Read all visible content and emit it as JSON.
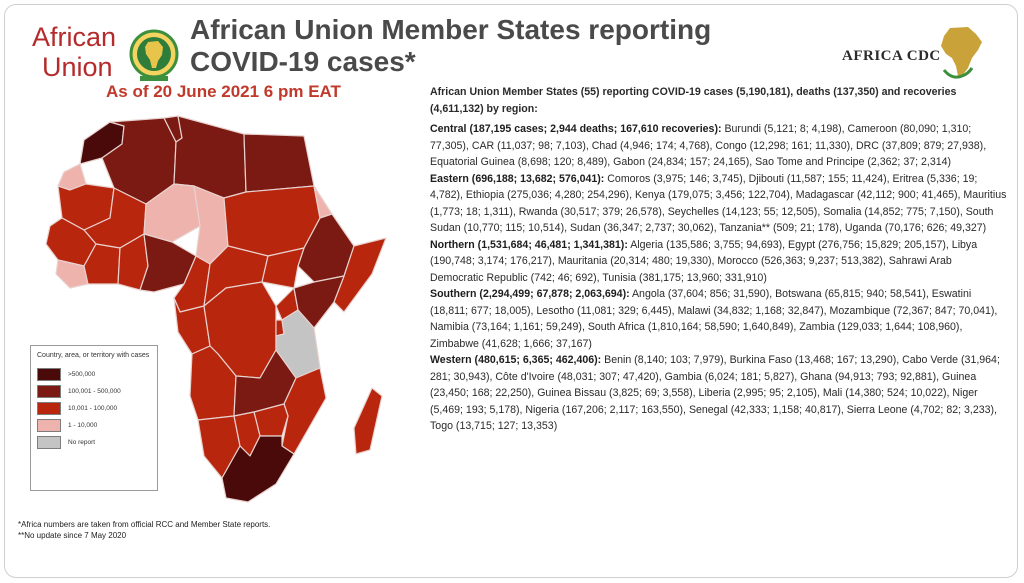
{
  "header": {
    "title_line1": "African Union Member States reporting",
    "title_line2": "COVID-19 cases*",
    "date_line": "As of 20 June 2021 6 pm EAT"
  },
  "logos": {
    "au_word1": "African",
    "au_word2": "Union",
    "cdc_text": "AFRICA CDC"
  },
  "summary": {
    "intro": "African Union Member States (55) reporting COVID-19 cases (5,190,181), deaths (137,350) and recoveries (4,611,132) by region:",
    "regions": [
      {
        "heading": "Central (187,195 cases; 2,944 deaths; 167,610 recoveries):",
        "details": "Burundi (5,121; 8; 4,198), Cameroon (80,090; 1,310; 77,305), CAR (11,037; 98; 7,103), Chad (4,946; 174; 4,768), Congo (12,298; 161; 11,330), DRC (37,809; 879; 27,938), Equatorial Guinea (8,698; 120; 8,489), Gabon (24,834; 157; 24,165), Sao Tome and Principe (2,362; 37; 2,314)"
      },
      {
        "heading": "Eastern (696,188; 13,682; 576,041):",
        "details": "Comoros (3,975; 146; 3,745), Djibouti (11,587; 155; 11,424), Eritrea (5,336; 19; 4,782), Ethiopia (275,036; 4,280; 254,296), Kenya (179,075; 3,456; 122,704), Madagascar (42,112; 900; 41,465), Mauritius (1,773; 18; 1,311), Rwanda (30,517; 379; 26,578), Seychelles (14,123; 55; 12,505), Somalia (14,852; 775; 7,150), South Sudan (10,770; 115; 10,514), Sudan (36,347; 2,737; 30,062), Tanzania** (509; 21; 178), Uganda (70,176; 626; 49,327)"
      },
      {
        "heading": "Northern (1,531,684; 46,481; 1,341,381):",
        "details": "Algeria (135,586; 3,755; 94,693), Egypt (276,756; 15,829; 205,157), Libya (190,748; 3,174; 176,217), Mauritania (20,314; 480; 19,330), Morocco (526,363; 9,237; 513,382), Sahrawi Arab Democratic Republic (742; 46; 692), Tunisia (381,175; 13,960; 331,910)"
      },
      {
        "heading": "Southern (2,294,499; 67,878; 2,063,694):",
        "details": "Angola (37,604; 856; 31,590), Botswana (65,815; 940; 58,541), Eswatini (18,811; 677; 18,005), Lesotho (11,081; 329; 6,445), Malawi (34,832; 1,168; 32,847), Mozambique (72,367; 847; 70,041), Namibia (73,164; 1,161; 59,249), South Africa (1,810,164; 58,590; 1,640,849), Zambia (129,033; 1,644; 108,960), Zimbabwe (41,628; 1,666; 37,167)"
      },
      {
        "heading": "Western (480,615; 6,365; 462,406):",
        "details": "Benin (8,140; 103; 7,979), Burkina Faso (13,468; 167; 13,290), Cabo Verde (31,964; 281; 30,943), Côte d'Ivoire (48,031; 307; 47,420), Gambia (6,024; 181; 5,827), Ghana (94,913; 793; 92,881), Guinea (23,450; 168; 22,250), Guinea Bissau (3,825; 69; 3,558), Liberia (2,995; 95; 2,105), Mali (14,380; 524; 10,022), Niger (5,469; 193; 5,178), Nigeria (167,206; 2,117; 163,550), Senegal (42,333; 1,158; 40,817), Sierra Leone (4,702; 82; 3,233), Togo (13,715; 127; 13,353)"
      }
    ]
  },
  "legend": {
    "title": "Country, area, or territory with cases",
    "items": [
      {
        "label": ">500,000",
        "color": "#4a0a0a"
      },
      {
        "label": "100,001 - 500,000",
        "color": "#7a1a12"
      },
      {
        "label": "10,001 - 100,000",
        "color": "#b8260e"
      },
      {
        "label": "1 - 10,000",
        "color": "#efb3ad"
      },
      {
        "label": "No report",
        "color": "#c4c4c4"
      }
    ]
  },
  "footnotes": {
    "note1": "*Africa numbers are taken from official RCC and Member State reports.",
    "note2": "**No update since 7 May 2020"
  },
  "colors": {
    "title": "#4a4a4a",
    "date": "#c0392b",
    "au_red": "#b52a2a"
  }
}
